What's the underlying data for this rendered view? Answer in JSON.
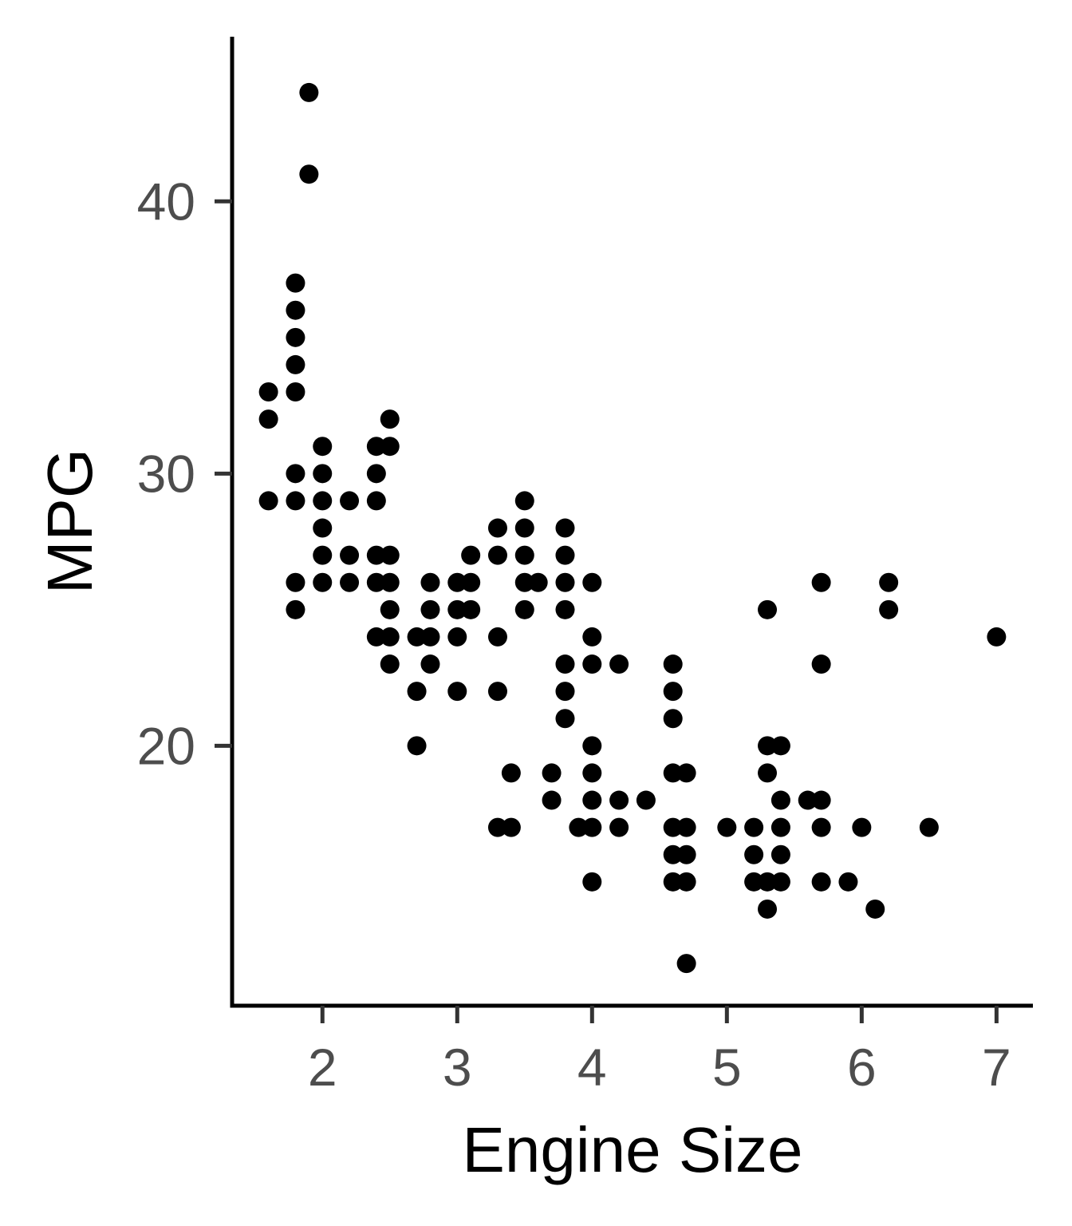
{
  "chart_data": {
    "type": "scatter",
    "title": "",
    "xlabel": "Engine Size",
    "ylabel": "MPG",
    "xlim": [
      1.33,
      7.27
    ],
    "ylim": [
      10.45,
      46.05
    ],
    "x_ticks": [
      2,
      3,
      4,
      5,
      6,
      7
    ],
    "y_ticks": [
      20,
      30,
      40
    ],
    "grid": false,
    "legend": "none",
    "point_color": "#000000",
    "points": [
      {
        "x": 1.9,
        "y": 44
      },
      {
        "x": 1.9,
        "y": 41
      },
      {
        "x": 1.8,
        "y": 37
      },
      {
        "x": 1.8,
        "y": 36
      },
      {
        "x": 1.8,
        "y": 35
      },
      {
        "x": 1.8,
        "y": 34
      },
      {
        "x": 1.8,
        "y": 33
      },
      {
        "x": 1.8,
        "y": 30
      },
      {
        "x": 1.8,
        "y": 29
      },
      {
        "x": 1.8,
        "y": 26
      },
      {
        "x": 1.8,
        "y": 25
      },
      {
        "x": 1.6,
        "y": 33
      },
      {
        "x": 1.6,
        "y": 32
      },
      {
        "x": 1.6,
        "y": 29
      },
      {
        "x": 2.0,
        "y": 31
      },
      {
        "x": 2.0,
        "y": 30
      },
      {
        "x": 2.0,
        "y": 29
      },
      {
        "x": 2.0,
        "y": 28
      },
      {
        "x": 2.0,
        "y": 27
      },
      {
        "x": 2.0,
        "y": 26
      },
      {
        "x": 2.2,
        "y": 29
      },
      {
        "x": 2.2,
        "y": 27
      },
      {
        "x": 2.2,
        "y": 26
      },
      {
        "x": 2.4,
        "y": 31
      },
      {
        "x": 2.4,
        "y": 30
      },
      {
        "x": 2.4,
        "y": 29
      },
      {
        "x": 2.4,
        "y": 27
      },
      {
        "x": 2.4,
        "y": 26
      },
      {
        "x": 2.4,
        "y": 24
      },
      {
        "x": 2.5,
        "y": 32
      },
      {
        "x": 2.5,
        "y": 31
      },
      {
        "x": 2.5,
        "y": 27
      },
      {
        "x": 2.5,
        "y": 26
      },
      {
        "x": 2.5,
        "y": 25
      },
      {
        "x": 2.5,
        "y": 24
      },
      {
        "x": 2.5,
        "y": 23
      },
      {
        "x": 2.7,
        "y": 24
      },
      {
        "x": 2.7,
        "y": 22
      },
      {
        "x": 2.7,
        "y": 20
      },
      {
        "x": 2.8,
        "y": 26
      },
      {
        "x": 2.8,
        "y": 25
      },
      {
        "x": 2.8,
        "y": 24
      },
      {
        "x": 2.8,
        "y": 23
      },
      {
        "x": 3.0,
        "y": 26
      },
      {
        "x": 3.0,
        "y": 25
      },
      {
        "x": 3.0,
        "y": 24
      },
      {
        "x": 3.0,
        "y": 22
      },
      {
        "x": 3.1,
        "y": 27
      },
      {
        "x": 3.1,
        "y": 26
      },
      {
        "x": 3.1,
        "y": 25
      },
      {
        "x": 3.3,
        "y": 28
      },
      {
        "x": 3.3,
        "y": 27
      },
      {
        "x": 3.3,
        "y": 24
      },
      {
        "x": 3.3,
        "y": 22
      },
      {
        "x": 3.3,
        "y": 17
      },
      {
        "x": 3.4,
        "y": 19
      },
      {
        "x": 3.4,
        "y": 17
      },
      {
        "x": 3.5,
        "y": 29
      },
      {
        "x": 3.5,
        "y": 28
      },
      {
        "x": 3.5,
        "y": 27
      },
      {
        "x": 3.5,
        "y": 26
      },
      {
        "x": 3.5,
        "y": 25
      },
      {
        "x": 3.6,
        "y": 26
      },
      {
        "x": 3.7,
        "y": 19
      },
      {
        "x": 3.7,
        "y": 18
      },
      {
        "x": 3.8,
        "y": 28
      },
      {
        "x": 3.8,
        "y": 27
      },
      {
        "x": 3.8,
        "y": 26
      },
      {
        "x": 3.8,
        "y": 25
      },
      {
        "x": 3.8,
        "y": 23
      },
      {
        "x": 3.8,
        "y": 22
      },
      {
        "x": 3.8,
        "y": 21
      },
      {
        "x": 3.9,
        "y": 17
      },
      {
        "x": 4.0,
        "y": 26
      },
      {
        "x": 4.0,
        "y": 24
      },
      {
        "x": 4.0,
        "y": 23
      },
      {
        "x": 4.0,
        "y": 20
      },
      {
        "x": 4.0,
        "y": 19
      },
      {
        "x": 4.0,
        "y": 18
      },
      {
        "x": 4.0,
        "y": 17
      },
      {
        "x": 4.0,
        "y": 15
      },
      {
        "x": 4.2,
        "y": 23
      },
      {
        "x": 4.2,
        "y": 18
      },
      {
        "x": 4.2,
        "y": 17
      },
      {
        "x": 4.4,
        "y": 18
      },
      {
        "x": 4.6,
        "y": 23
      },
      {
        "x": 4.6,
        "y": 22
      },
      {
        "x": 4.6,
        "y": 21
      },
      {
        "x": 4.6,
        "y": 19
      },
      {
        "x": 4.6,
        "y": 17
      },
      {
        "x": 4.6,
        "y": 16
      },
      {
        "x": 4.6,
        "y": 15
      },
      {
        "x": 4.7,
        "y": 19
      },
      {
        "x": 4.7,
        "y": 17
      },
      {
        "x": 4.7,
        "y": 16
      },
      {
        "x": 4.7,
        "y": 15
      },
      {
        "x": 4.7,
        "y": 12
      },
      {
        "x": 5.0,
        "y": 17
      },
      {
        "x": 5.2,
        "y": 17
      },
      {
        "x": 5.2,
        "y": 16
      },
      {
        "x": 5.2,
        "y": 15
      },
      {
        "x": 5.3,
        "y": 25
      },
      {
        "x": 5.3,
        "y": 20
      },
      {
        "x": 5.3,
        "y": 19
      },
      {
        "x": 5.3,
        "y": 15
      },
      {
        "x": 5.3,
        "y": 14
      },
      {
        "x": 5.4,
        "y": 20
      },
      {
        "x": 5.4,
        "y": 18
      },
      {
        "x": 5.4,
        "y": 17
      },
      {
        "x": 5.4,
        "y": 16
      },
      {
        "x": 5.4,
        "y": 15
      },
      {
        "x": 5.6,
        "y": 18
      },
      {
        "x": 5.7,
        "y": 26
      },
      {
        "x": 5.7,
        "y": 23
      },
      {
        "x": 5.7,
        "y": 18
      },
      {
        "x": 5.7,
        "y": 17
      },
      {
        "x": 5.7,
        "y": 15
      },
      {
        "x": 5.9,
        "y": 15
      },
      {
        "x": 6.0,
        "y": 17
      },
      {
        "x": 6.1,
        "y": 14
      },
      {
        "x": 6.2,
        "y": 26
      },
      {
        "x": 6.2,
        "y": 25
      },
      {
        "x": 6.5,
        "y": 17
      },
      {
        "x": 7.0,
        "y": 24
      }
    ]
  }
}
